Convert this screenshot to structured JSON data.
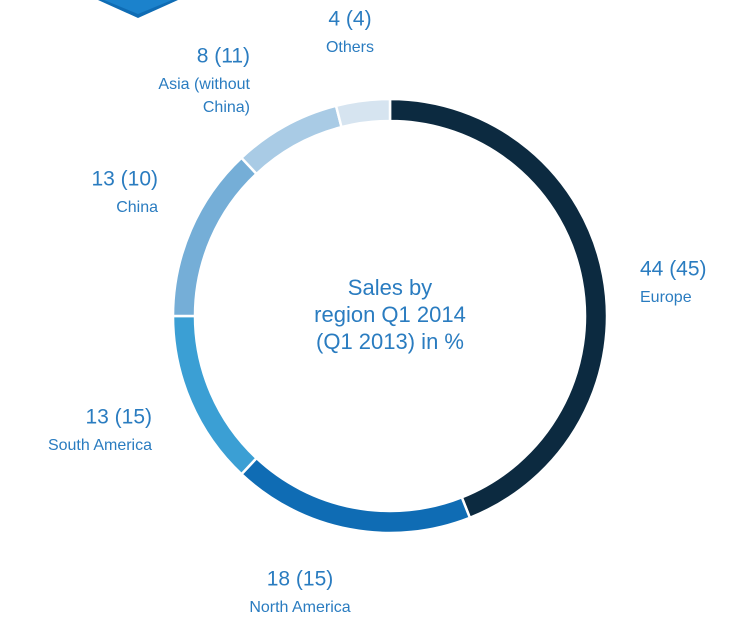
{
  "chart_data": {
    "type": "donut",
    "title": [
      "Sales by",
      "region Q1 2014",
      "(Q1 2013) in %"
    ],
    "categories": [
      "Europe",
      "North America",
      "South America",
      "China",
      "Asia (without China)",
      "Others"
    ],
    "values": [
      44,
      18,
      13,
      13,
      8,
      4
    ],
    "value_labels": [
      "44 (45)",
      "18 (15)",
      "13 (15)",
      "13 (10)",
      "8 (11)",
      "4 (4)"
    ],
    "colors": [
      "#0c2a40",
      "#0f6cb4",
      "#3b9fd4",
      "#75aed7",
      "#a9cbe5",
      "#d6e4f0"
    ]
  }
}
